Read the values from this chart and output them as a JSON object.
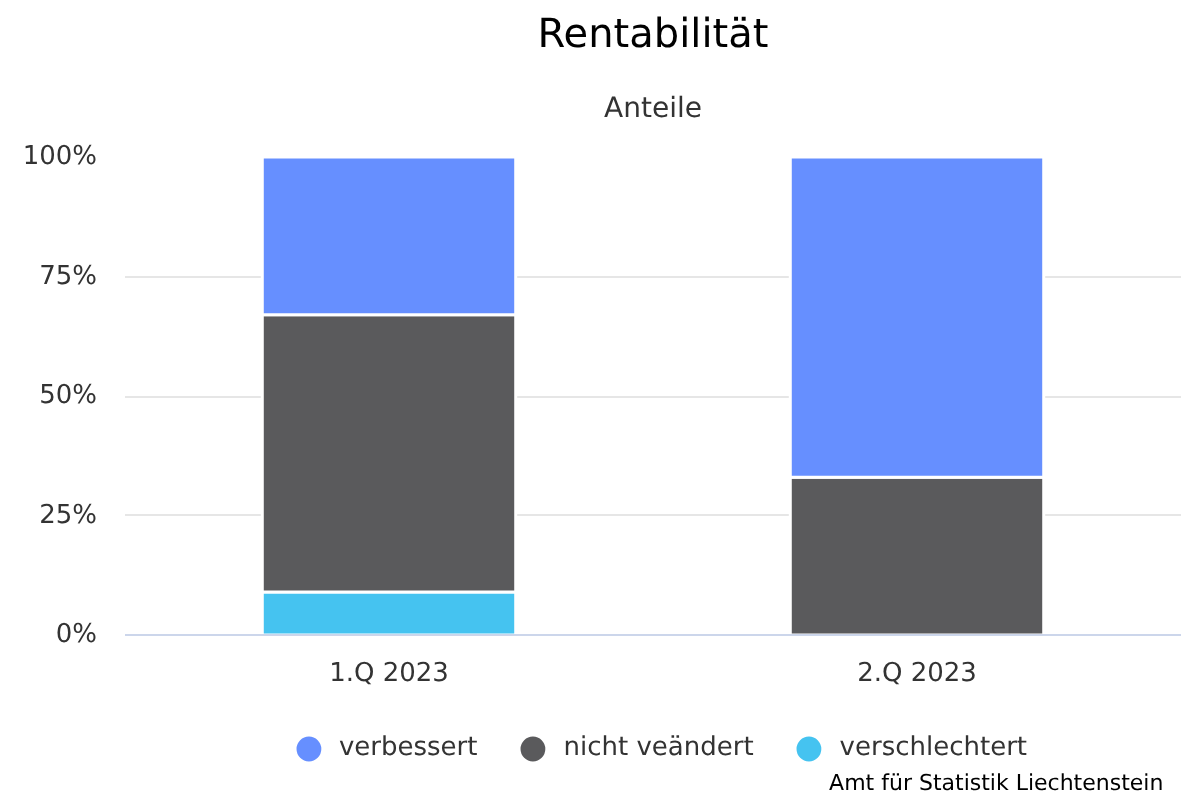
{
  "chart_data": {
    "type": "bar",
    "title": "Rentabilität",
    "subtitle": "Anteile",
    "categories": [
      "1.Q 2023",
      "2.Q 2023"
    ],
    "stacked": true,
    "series": [
      {
        "name": "verschlechtert",
        "color": "#45c3f0",
        "values": [
          9,
          0
        ]
      },
      {
        "name": "nicht veändert",
        "color": "#5a5a5c",
        "values": [
          58,
          33
        ]
      },
      {
        "name": "verbessert",
        "color": "#668fff",
        "values": [
          33,
          67
        ]
      }
    ],
    "ylim": [
      0,
      100
    ],
    "yticks": [
      {
        "value": 0,
        "label": "0%"
      },
      {
        "value": 25,
        "label": "25%"
      },
      {
        "value": 50,
        "label": "50%"
      },
      {
        "value": 75,
        "label": "75%"
      },
      {
        "value": 100,
        "label": "100%"
      }
    ],
    "grid": "y",
    "legend": "bottom",
    "annotations": [
      "Amt für Statistik Liechtenstein"
    ]
  }
}
